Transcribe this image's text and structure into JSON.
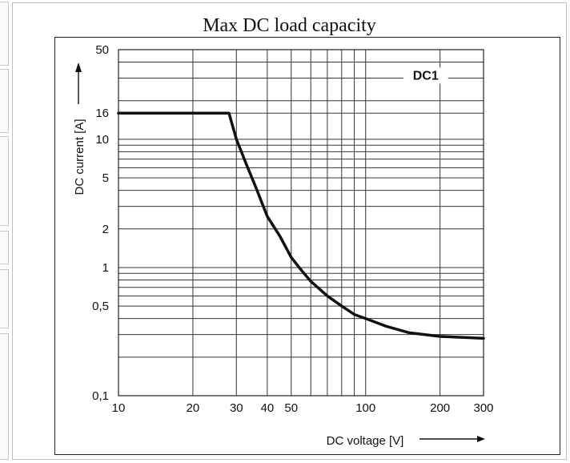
{
  "chart_data": {
    "type": "line",
    "title": "Max DC load capacity",
    "xlabel": "DC voltage [V]",
    "ylabel": "DC current [A]",
    "xscale": "log",
    "yscale": "log",
    "xlim": [
      10,
      300
    ],
    "ylim": [
      0.1,
      50
    ],
    "x_ticks": [
      10,
      20,
      30,
      40,
      50,
      100,
      200,
      300
    ],
    "x_tick_labels": [
      "10",
      "20",
      "30",
      "40",
      "50",
      "100",
      "200",
      "300"
    ],
    "y_ticks": [
      0.1,
      0.5,
      1,
      2,
      5,
      10,
      16,
      50
    ],
    "y_tick_labels": [
      "0,1",
      "0,5",
      "1",
      "2",
      "5",
      "10",
      "16",
      "50"
    ],
    "grid": true,
    "legend_position": "top-right",
    "series": [
      {
        "name": "DC1",
        "x": [
          10,
          28,
          30,
          33,
          36,
          40,
          45,
          50,
          55,
          60,
          70,
          80,
          90,
          100,
          120,
          150,
          200,
          250,
          300
        ],
        "y": [
          16,
          16,
          10,
          6.3,
          4.2,
          2.5,
          1.75,
          1.2,
          0.95,
          0.78,
          0.6,
          0.5,
          0.43,
          0.4,
          0.35,
          0.31,
          0.29,
          0.285,
          0.28
        ]
      }
    ]
  }
}
